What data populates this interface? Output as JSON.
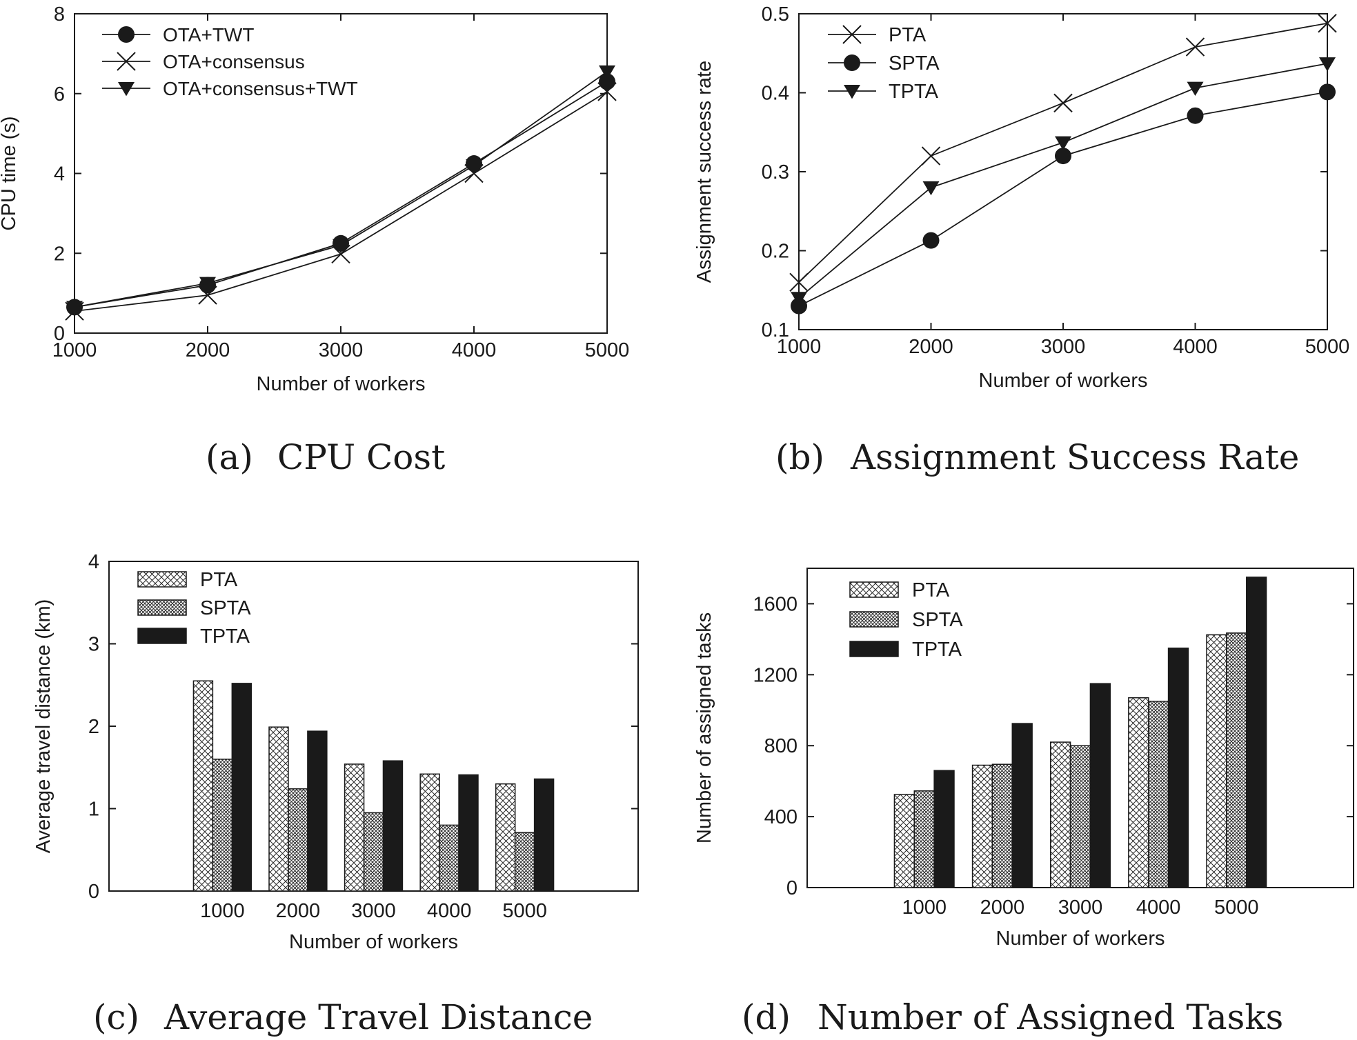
{
  "figure": {
    "panels": [
      {
        "tag": "(a)",
        "caption": "CPU Cost"
      },
      {
        "tag": "(b)",
        "caption": "Assignment Success Rate"
      },
      {
        "tag": "(c)",
        "caption": "Average Travel Distance"
      },
      {
        "tag": "(d)",
        "caption": "Number of Assigned Tasks"
      }
    ]
  },
  "chart_data": [
    {
      "type": "line",
      "xlabel": "Number of workers",
      "ylabel": "CPU time (s)",
      "x": [
        1000,
        2000,
        3000,
        4000,
        5000
      ],
      "xlim": [
        1000,
        5000
      ],
      "ylim": [
        0,
        8
      ],
      "yticks": [
        0,
        2,
        4,
        6,
        8
      ],
      "legend_position": "top-left",
      "grid": false,
      "series": [
        {
          "name": "OTA+TWT",
          "marker": "circle",
          "values": [
            0.65,
            1.2,
            2.25,
            4.25,
            6.3
          ]
        },
        {
          "name": "OTA+consensus",
          "marker": "x",
          "values": [
            0.55,
            0.95,
            1.98,
            4.0,
            6.05
          ]
        },
        {
          "name": "OTA+consensus+TWT",
          "marker": "triangle-down",
          "values": [
            0.65,
            1.25,
            2.2,
            4.2,
            6.55
          ]
        }
      ]
    },
    {
      "type": "line",
      "xlabel": "Number of workers",
      "ylabel": "Assignment success rate",
      "x": [
        1000,
        2000,
        3000,
        4000,
        5000
      ],
      "xlim": [
        1000,
        5000
      ],
      "ylim": [
        0.1,
        0.5
      ],
      "yticks": [
        0.1,
        0.2,
        0.3,
        0.4,
        0.5
      ],
      "legend_position": "top-left",
      "grid": false,
      "series": [
        {
          "name": "PTA",
          "marker": "x",
          "values": [
            0.16,
            0.32,
            0.387,
            0.458,
            0.488
          ]
        },
        {
          "name": "SPTA",
          "marker": "circle",
          "values": [
            0.13,
            0.213,
            0.32,
            0.371,
            0.401
          ]
        },
        {
          "name": "TPTA",
          "marker": "triangle-down",
          "values": [
            0.14,
            0.28,
            0.337,
            0.406,
            0.437
          ]
        }
      ]
    },
    {
      "type": "bar",
      "xlabel": "Number of workers",
      "ylabel": "Average travel distance (km)",
      "categories": [
        "1000",
        "2000",
        "3000",
        "4000",
        "5000"
      ],
      "ylim": [
        0,
        4
      ],
      "yticks": [
        0,
        1,
        2,
        3,
        4
      ],
      "legend_position": "top-left",
      "grid": false,
      "series": [
        {
          "name": "PTA",
          "pattern": "crosshatch-light",
          "values": [
            2.55,
            1.99,
            1.54,
            1.42,
            1.3
          ]
        },
        {
          "name": "SPTA",
          "pattern": "crosshatch-dense",
          "values": [
            1.6,
            1.24,
            0.95,
            0.8,
            0.71
          ]
        },
        {
          "name": "TPTA",
          "pattern": "solid",
          "values": [
            2.52,
            1.94,
            1.58,
            1.41,
            1.36
          ]
        }
      ]
    },
    {
      "type": "bar",
      "xlabel": "Number of workers",
      "ylabel": "Number of assigned tasks",
      "categories": [
        "1000",
        "2000",
        "3000",
        "4000",
        "5000"
      ],
      "ylim": [
        0,
        1800
      ],
      "yticks": [
        0,
        400,
        800,
        1200,
        1600
      ],
      "legend_position": "top-left",
      "grid": false,
      "series": [
        {
          "name": "PTA",
          "pattern": "crosshatch-light",
          "values": [
            525,
            690,
            820,
            1070,
            1425
          ]
        },
        {
          "name": "SPTA",
          "pattern": "crosshatch-dense",
          "values": [
            545,
            695,
            800,
            1050,
            1435
          ]
        },
        {
          "name": "TPTA",
          "pattern": "solid",
          "values": [
            660,
            925,
            1150,
            1350,
            1750
          ]
        }
      ]
    }
  ]
}
